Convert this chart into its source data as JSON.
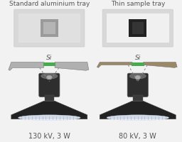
{
  "bg_color": "#f2f2f2",
  "title_left": "Standard aluminium tray",
  "title_right": "Thin sample tray",
  "label_left": "130 kV, 3 W",
  "label_right": "80 kV, 3 W",
  "si_label": "Si",
  "left_tray_color": "#b0b0b0",
  "right_tray_color": "#9b8866",
  "green_sample_color": "#4aaa50",
  "left_sq_outer": "#9a9a9a",
  "left_sq_inner": "#b5b5b5",
  "right_sq_outer": "#222222",
  "right_sq_inner": "#353535",
  "left_img_bg": "#e0e0e0",
  "right_img_bg": "#f0f0f0",
  "text_color": "#555555",
  "title_fontsize": 6.5,
  "label_fontsize": 7.0,
  "si_fontsize": 6.5
}
